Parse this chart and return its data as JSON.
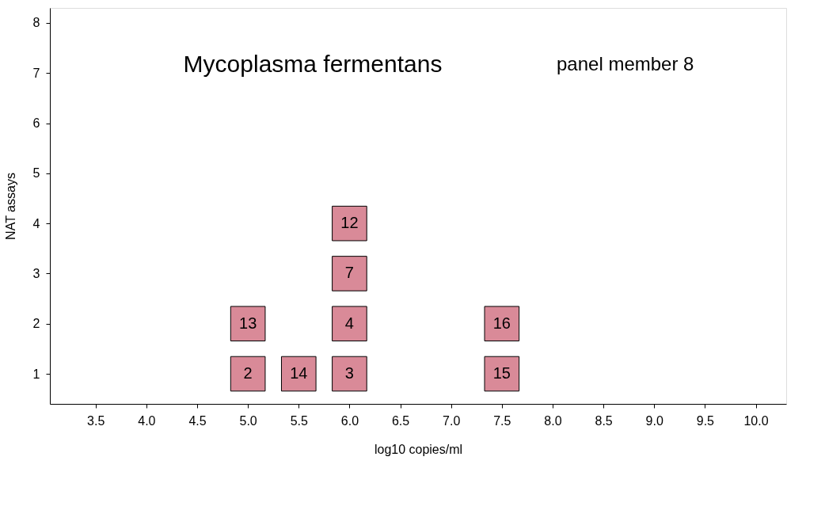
{
  "chart_data": {
    "type": "scatter",
    "title": "Mycoplasma fermentans",
    "annotations": [
      "panel member 8",
      {
        "text": "2",
        "x": 5.0,
        "y": 1
      },
      {
        "text": "13",
        "x": 5.0,
        "y": 2
      },
      {
        "text": "14",
        "x": 5.5,
        "y": 1
      },
      {
        "text": "3",
        "x": 6.0,
        "y": 1
      },
      {
        "text": "4",
        "x": 6.0,
        "y": 2
      },
      {
        "text": "7",
        "x": 6.0,
        "y": 3
      },
      {
        "text": "12",
        "x": 6.0,
        "y": 4
      },
      {
        "text": "15",
        "x": 7.5,
        "y": 1
      },
      {
        "text": "16",
        "x": 7.5,
        "y": 2
      }
    ],
    "xlabel": "log10 copies/ml",
    "ylabel": "NAT assays",
    "x": [
      5.0,
      5.0,
      5.5,
      6.0,
      6.0,
      6.0,
      6.0,
      7.5,
      7.5
    ],
    "values": [
      1,
      2,
      1,
      1,
      2,
      3,
      4,
      1,
      2
    ],
    "color": "#d98a98",
    "marker": "square",
    "grid": false,
    "xlim": [
      3.05,
      10.3
    ],
    "xticks": [
      3.5,
      {
        "value": 4,
        "label": "4.0"
      },
      4.5,
      {
        "value": 5,
        "label": "5.0"
      },
      5.5,
      {
        "value": 6,
        "label": "6.0"
      },
      6.5,
      {
        "value": 7,
        "label": "7.0"
      },
      7.5,
      {
        "value": 8,
        "label": "8.0"
      },
      8.5,
      {
        "value": 9,
        "label": "9.0"
      },
      9.5,
      {
        "value": 10,
        "label": "10.0"
      }
    ],
    "ylim": [
      0.4,
      8.3
    ],
    "yticks": [
      1,
      2,
      3,
      4,
      5,
      6,
      7,
      8
    ]
  }
}
